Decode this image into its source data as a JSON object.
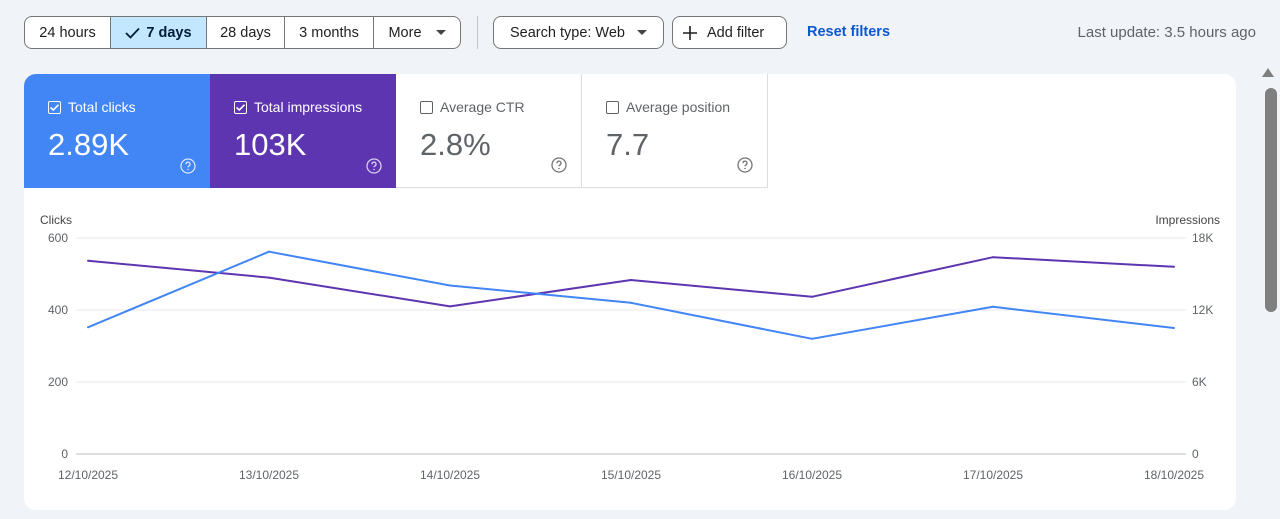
{
  "filters": {
    "ranges": [
      {
        "label": "24 hours",
        "selected": false
      },
      {
        "label": "7 days",
        "selected": true
      },
      {
        "label": "28 days",
        "selected": false
      },
      {
        "label": "3 months",
        "selected": false
      },
      {
        "label": "More",
        "selected": false
      }
    ],
    "search_type": "Search type: Web",
    "add_filter": "Add filter",
    "reset": "Reset filters",
    "last_update": "Last update: 3.5 hours ago"
  },
  "metrics": [
    {
      "label": "Total clicks",
      "value": "2.89K",
      "checked": true,
      "color": "#4285f4"
    },
    {
      "label": "Total impressions",
      "value": "103K",
      "checked": true,
      "color": "#5e35b1"
    },
    {
      "label": "Average CTR",
      "value": "2.8%",
      "checked": false
    },
    {
      "label": "Average position",
      "value": "7.7",
      "checked": false
    }
  ],
  "chart_data": {
    "type": "line",
    "x": [
      "12/10/2025",
      "13/10/2025",
      "14/10/2025",
      "15/10/2025",
      "16/10/2025",
      "17/10/2025",
      "18/10/2025"
    ],
    "series": [
      {
        "name": "Clicks",
        "axis": "left",
        "color": "#4285f4",
        "values": [
          352,
          562,
          468,
          420,
          320,
          409,
          350
        ]
      },
      {
        "name": "Impressions",
        "axis": "right",
        "color": "#5e35b1",
        "values": [
          16100,
          14700,
          12300,
          14500,
          13100,
          16400,
          15600
        ]
      }
    ],
    "ylabel_left": "Clicks",
    "ylabel_right": "Impressions",
    "left_ticks": [
      "0",
      "200",
      "400",
      "600"
    ],
    "right_ticks": [
      "0",
      "6K",
      "12K",
      "18K"
    ],
    "ylim_left": [
      0,
      600
    ],
    "ylim_right": [
      0,
      18000
    ],
    "grid": true
  }
}
